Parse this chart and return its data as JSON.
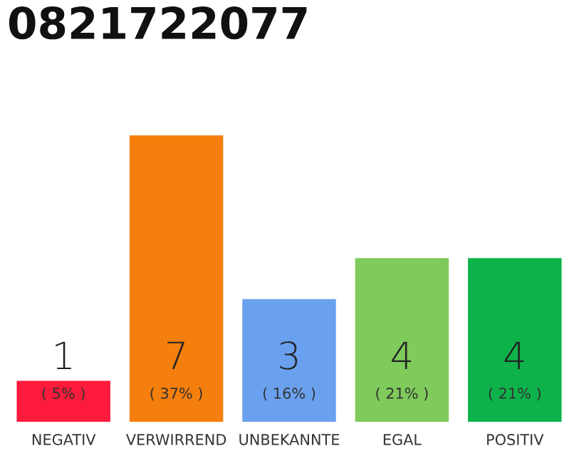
{
  "chart_data": {
    "type": "bar",
    "title": "0821722077",
    "categories": [
      "NEGATIV",
      "VERWIRREND",
      "UNBEKANNTE",
      "EGAL",
      "POSITIV"
    ],
    "values": [
      1,
      7,
      3,
      4,
      4
    ],
    "colors": [
      "#fe1a3a",
      "#f57f0c",
      "#6aa1ee",
      "#7ecb5c",
      "#0db34a"
    ],
    "data_labels": true,
    "annotations": [
      "( 5% )",
      "( 37% )",
      "( 16% )",
      "( 21% )",
      "( 21% )"
    ],
    "grid": false,
    "legend": false
  }
}
